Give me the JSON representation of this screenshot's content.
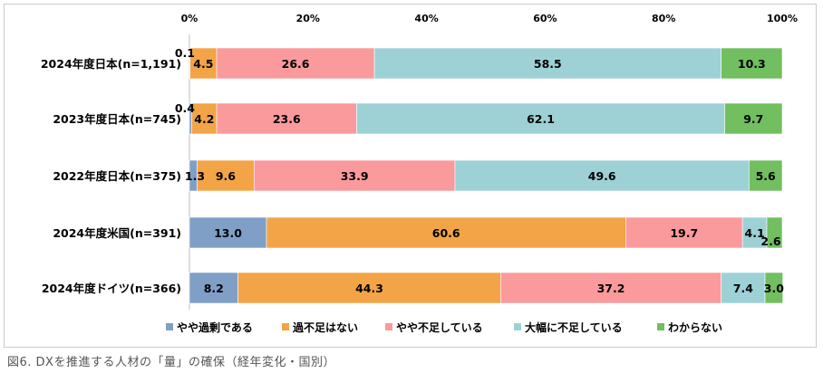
{
  "caption": "図6. DXを推進する人材の「量」の確保（経年変化・国別）",
  "chart_data": {
    "type": "bar",
    "orientation": "horizontal",
    "stacked": "percent",
    "xlim": [
      0,
      100
    ],
    "x_ticks": [
      "0%",
      "20%",
      "40%",
      "60%",
      "80%",
      "100%"
    ],
    "categories": [
      "2024年度日本(n=1,191)",
      "2023年度日本(n=745)",
      "2022年度日本(n=375)",
      "2024年度米国(n=391)",
      "2024年度ドイツ(n=366)"
    ],
    "series": [
      {
        "name": "やや過剰である",
        "color": "#7f9fc7",
        "values": [
          0.1,
          0.4,
          1.3,
          13.0,
          8.2
        ],
        "labels": [
          "0.1",
          "0.4",
          "1.3",
          "13.0",
          "8.2"
        ]
      },
      {
        "name": "過不足はない",
        "color": "#f2a446",
        "values": [
          4.5,
          4.2,
          9.6,
          60.6,
          44.3
        ],
        "labels": [
          "4.5",
          "4.2",
          "9.6",
          "60.6",
          "44.3"
        ]
      },
      {
        "name": "やや不足している",
        "color": "#fa9a9c",
        "values": [
          26.6,
          23.6,
          33.9,
          19.7,
          37.2
        ],
        "labels": [
          "26.6",
          "23.6",
          "33.9",
          "19.7",
          "37.2"
        ]
      },
      {
        "name": "大幅に不足している",
        "color": "#9dd1d6",
        "values": [
          58.5,
          62.1,
          49.6,
          4.1,
          7.4
        ],
        "labels": [
          "58.5",
          "62.1",
          "49.6",
          "4.1",
          "7.4"
        ]
      },
      {
        "name": "わからない",
        "color": "#71bf5f",
        "values": [
          10.3,
          9.7,
          5.6,
          2.6,
          3.0
        ],
        "labels": [
          "10.3",
          "9.7",
          "5.6",
          "2.6",
          "3.0"
        ]
      }
    ],
    "legend_position": "bottom",
    "grid": false
  }
}
